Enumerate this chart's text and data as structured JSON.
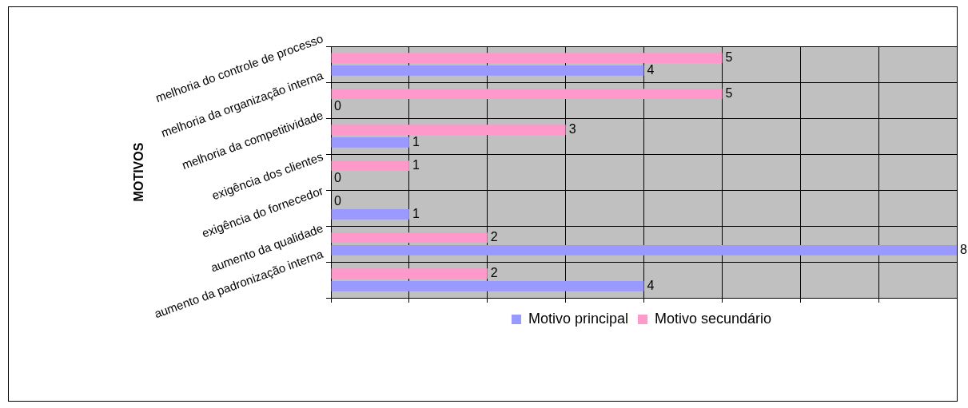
{
  "chart_data": {
    "type": "bar",
    "orientation": "horizontal",
    "ylabel": "MOTIVOS",
    "categories": [
      "melhoria do controle de processo",
      "melhoria da organização interna",
      "melhoria da competitividade",
      "exigência dos clientes",
      "exigência do fornecedor",
      "aumento da qualidade",
      "aumento da padronização interna"
    ],
    "series": [
      {
        "name": "Motivo secundário",
        "color": "#ff99cc",
        "values": [
          5,
          5,
          3,
          1,
          0,
          2,
          2
        ]
      },
      {
        "name": "Motivo principal",
        "color": "#9999ff",
        "values": [
          4,
          0,
          1,
          0,
          1,
          8,
          4
        ]
      }
    ],
    "xlim": [
      0,
      8
    ],
    "tick_labels": "y",
    "grid": true,
    "legend": "bottom",
    "data_labels": true
  }
}
